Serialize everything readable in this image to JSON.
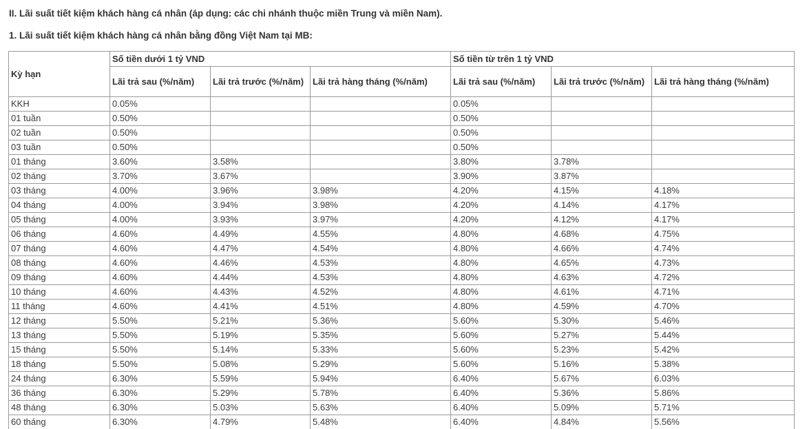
{
  "page": {
    "heading1": "II. Lãi suất tiết kiệm khách hàng cá nhân (áp dụng: các chi nhánh thuộc miền Trung và miền Nam).",
    "heading2": "1. Lãi suất tiết kiệm khách hàng cá nhân bằng đồng Việt Nam tại MB:"
  },
  "colors": {
    "border": "#999999",
    "text": "#333333"
  },
  "table": {
    "corner_header": "Kỳ hạn",
    "groups": [
      {
        "label": "Số tiền dưới 1 tỷ VND"
      },
      {
        "label": "Số tiền từ trên 1 tỷ VND"
      }
    ],
    "sub_headers": [
      "Lãi trả sau (%/năm)",
      "Lãi trả trước (%/năm)",
      "Lãi trả hàng tháng (%/năm)"
    ],
    "rows": [
      {
        "term": "KKH",
        "values": [
          "0.05%",
          "",
          "",
          "0.05%",
          "",
          ""
        ]
      },
      {
        "term": "01 tuần",
        "values": [
          "0.50%",
          "",
          "",
          "0.50%",
          "",
          ""
        ]
      },
      {
        "term": "02 tuần",
        "values": [
          "0.50%",
          "",
          "",
          "0.50%",
          "",
          ""
        ]
      },
      {
        "term": "03 tuần",
        "values": [
          "0.50%",
          "",
          "",
          "0.50%",
          "",
          ""
        ]
      },
      {
        "term": "01 tháng",
        "values": [
          "3.60%",
          "3.58%",
          "",
          "3.80%",
          "3.78%",
          ""
        ]
      },
      {
        "term": "02 tháng",
        "values": [
          "3.70%",
          "3.67%",
          "",
          "3.90%",
          "3.87%",
          ""
        ]
      },
      {
        "term": "03 tháng",
        "values": [
          "4.00%",
          "3.96%",
          "3.98%",
          "4.20%",
          "4.15%",
          "4.18%"
        ]
      },
      {
        "term": "04 tháng",
        "values": [
          "4.00%",
          "3.94%",
          "3.98%",
          "4.20%",
          "4.14%",
          "4.17%"
        ]
      },
      {
        "term": "05 tháng",
        "values": [
          "4.00%",
          "3.93%",
          "3.97%",
          "4.20%",
          "4.12%",
          "4.17%"
        ]
      },
      {
        "term": "06 tháng",
        "values": [
          "4.60%",
          "4.49%",
          "4.55%",
          "4.80%",
          "4.68%",
          "4.75%"
        ]
      },
      {
        "term": "07 tháng",
        "values": [
          "4.60%",
          "4.47%",
          "4.54%",
          "4.80%",
          "4.66%",
          "4.74%"
        ]
      },
      {
        "term": "08 tháng",
        "values": [
          "4.60%",
          "4.46%",
          "4.53%",
          "4.80%",
          "4.65%",
          "4.73%"
        ]
      },
      {
        "term": "09 tháng",
        "values": [
          "4.60%",
          "4.44%",
          "4.53%",
          "4.80%",
          "4.63%",
          "4.72%"
        ]
      },
      {
        "term": "10 tháng",
        "values": [
          "4.60%",
          "4.43%",
          "4.52%",
          "4.80%",
          "4.61%",
          "4.71%"
        ]
      },
      {
        "term": "11 tháng",
        "values": [
          "4.60%",
          "4.41%",
          "4.51%",
          "4.80%",
          "4.59%",
          "4.70%"
        ]
      },
      {
        "term": "12 tháng",
        "values": [
          "5.50%",
          "5.21%",
          "5.36%",
          "5.60%",
          "5.30%",
          "5.46%"
        ]
      },
      {
        "term": "13 tháng",
        "values": [
          "5.50%",
          "5.19%",
          "5.35%",
          "5.60%",
          "5.27%",
          "5.44%"
        ]
      },
      {
        "term": "15 tháng",
        "values": [
          "5.50%",
          "5.14%",
          "5.33%",
          "5.60%",
          "5.23%",
          "5.42%"
        ]
      },
      {
        "term": "18 tháng",
        "values": [
          "5.50%",
          "5.08%",
          "5.29%",
          "5.60%",
          "5.16%",
          "5.38%"
        ]
      },
      {
        "term": "24 tháng",
        "values": [
          "6.30%",
          "5.59%",
          "5.94%",
          "6.40%",
          "5.67%",
          "6.03%"
        ]
      },
      {
        "term": "36 tháng",
        "values": [
          "6.30%",
          "5.29%",
          "5.78%",
          "6.40%",
          "5.36%",
          "5.86%"
        ]
      },
      {
        "term": "48 tháng",
        "values": [
          "6.30%",
          "5.03%",
          "5.63%",
          "6.40%",
          "5.09%",
          "5.71%"
        ]
      },
      {
        "term": "60 tháng",
        "values": [
          "6.30%",
          "4.79%",
          "5.48%",
          "6.40%",
          "4.84%",
          "5.56%"
        ]
      }
    ]
  }
}
